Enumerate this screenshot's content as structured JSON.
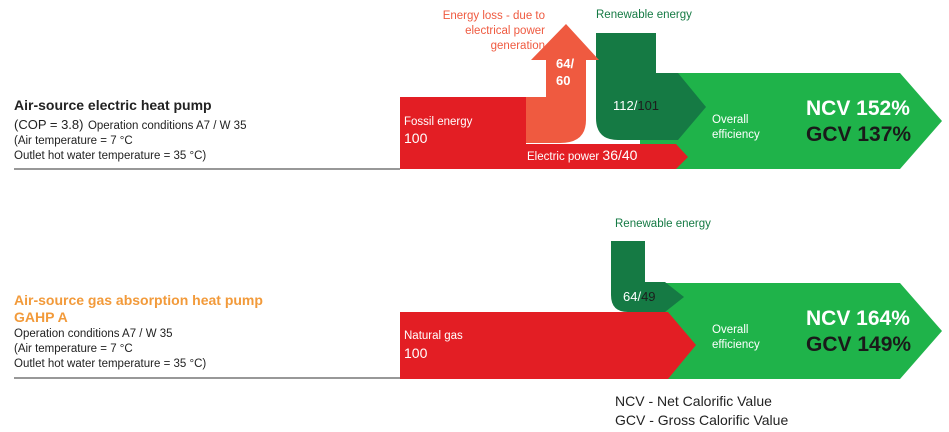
{
  "colors": {
    "red": "#e31e24",
    "salmon": "#ef5a40",
    "dark_green": "#157a44",
    "green": "#1fb34a",
    "orange": "#f29a3a",
    "line": "#777777"
  },
  "section_1": {
    "title": "Air-source electric heat pump",
    "cop": "(COP = 3.8)",
    "conditions": "Operation conditions A7 / W 35",
    "air_temp": "(Air temperature = 7 °C",
    "water_temp": "Outlet hot water temperature = 35 °C)",
    "energy_loss_line1": "Energy loss - due to",
    "energy_loss_line2": "electrical power",
    "energy_loss_line3": "generation",
    "loss_value_line1": "64/",
    "loss_value_line2": "60",
    "renewable_label": "Renewable energy",
    "fossil_label": "Fossil energy",
    "fossil_value": "100",
    "electric_label": "Electric power ",
    "electric_value": "36/40",
    "renew_value_a": "112/",
    "renew_value_b": "101",
    "overall_line1": "Overall",
    "overall_line2": "efficiency",
    "ncv": "NCV 152%",
    "gcv": "GCV 137%"
  },
  "section_2": {
    "title_line1": "Air-source gas absorption heat pump",
    "title_line2": "GAHP A",
    "conditions": "Operation conditions A7 / W 35",
    "air_temp": "(Air temperature = 7 °C",
    "water_temp": "Outlet hot water temperature = 35 °C)",
    "renewable_label": "Renewable energy",
    "renew_value_a": "64/",
    "renew_value_b": "49",
    "gas_label": "Natural gas",
    "gas_value": "100",
    "overall_line1": "Overall",
    "overall_line2": "efficiency",
    "ncv": "NCV 164%",
    "gcv": "GCV 149%"
  },
  "legend": {
    "ncv": "NCV - Net Calorific Value",
    "gcv": "GCV - Gross Calorific Value"
  }
}
